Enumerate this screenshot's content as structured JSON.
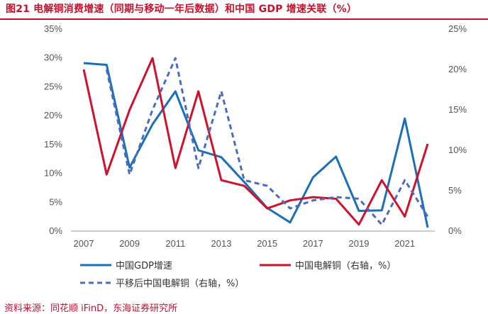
{
  "title": "图21  电解铜消费增速（同期与移动一年后数据）和中国 GDP 增速关联（%）",
  "source": "资料来源：同花顺 iFinD，东海证券研究所",
  "colors": {
    "gdp": "#1a70b8",
    "copper": "#d0112b",
    "shifted": "#4a6cc0",
    "title": "#c8102e"
  },
  "chart_data": {
    "type": "line",
    "title": "电解铜消费增速（同期与移动一年后数据）和中国 GDP 增速关联（%）",
    "x": [
      2007,
      2008,
      2009,
      2010,
      2011,
      2012,
      2013,
      2014,
      2015,
      2016,
      2017,
      2018,
      2019,
      2020,
      2021,
      2022
    ],
    "x_tick_labels": [
      "2007",
      "2009",
      "2011",
      "2013",
      "2015",
      "2017",
      "2019",
      "2021"
    ],
    "y_left": {
      "min": 0,
      "max": 35,
      "ticks": [
        "0%",
        "5%",
        "10%",
        "15%",
        "20%",
        "25%",
        "30%",
        "35%"
      ]
    },
    "y_right": {
      "min": 0,
      "max": 25,
      "ticks": [
        "0%",
        "5%",
        "10%",
        "15%",
        "20%",
        "25%"
      ]
    },
    "series": [
      {
        "name": "中国GDP增速",
        "axis": "left",
        "style": "solid",
        "values": [
          29.1,
          28.8,
          11.0,
          18.5,
          24.2,
          14.0,
          12.8,
          8.5,
          4.0,
          1.5,
          9.3,
          12.9,
          3.5,
          3.6,
          19.5,
          0.6
        ]
      },
      {
        "name": "中国电解铜（右轴，%）",
        "axis": "right",
        "style": "solid",
        "values": [
          20.0,
          7.0,
          15.0,
          21.4,
          7.8,
          17.3,
          6.3,
          5.6,
          2.8,
          3.8,
          4.2,
          4.0,
          0.8,
          6.3,
          1.8,
          10.8
        ]
      },
      {
        "name": "平移后中国电解铜（右轴，%）",
        "axis": "right",
        "style": "dashed",
        "values": [
          null,
          20.0,
          7.0,
          15.0,
          21.4,
          7.8,
          17.3,
          6.3,
          5.6,
          2.8,
          3.8,
          4.2,
          4.0,
          0.8,
          6.3,
          1.8
        ]
      }
    ],
    "legend_position": "bottom"
  }
}
